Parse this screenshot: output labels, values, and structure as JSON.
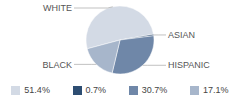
{
  "chart_data": {
    "type": "pie",
    "categories": [
      "WHITE",
      "ASIAN",
      "HISPANIC",
      "BLACK"
    ],
    "values": [
      51.4,
      0.7,
      30.7,
      17.1
    ],
    "value_labels": [
      "51.4%",
      "0.7%",
      "30.7%",
      "17.1%"
    ],
    "colors": [
      "#d3dae5",
      "#2d4d72",
      "#6f87a8",
      "#a7b6cb"
    ],
    "legend": "bottom"
  }
}
